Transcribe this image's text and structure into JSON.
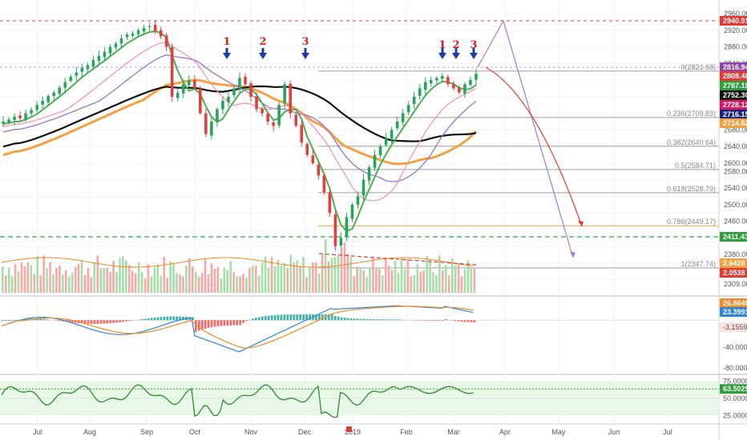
{
  "colors": {
    "up": "#26a65b",
    "down": "#e04040",
    "ema_fast": "#4caf50",
    "ma_pink": "#f48fb1",
    "ma_purple": "#9575cd",
    "ma_black": "#111111",
    "ma_orange": "#f5a142",
    "vol_up": "#a5dfa7",
    "vol_down": "#f7a8a8",
    "macd_line": "#2f86d6",
    "signal_line": "#f08a24",
    "rsi_line": "#2e8b2e",
    "fib_line": "#9e9e9e",
    "fib786": "#f5a142",
    "green_dash": "#2eaa2e",
    "red_dash": "#e53935",
    "projection_purple": "#a07ae0",
    "projection_red": "#e53935",
    "arrow_blue": "#1a3aa8"
  },
  "x_axis": {
    "months": [
      "Jul",
      "Aug",
      "Sep",
      "Oct",
      "Nov",
      "Dec",
      "2019",
      "Feb",
      "Mar",
      "Apr",
      "May",
      "Jun",
      "Jul"
    ]
  },
  "price_axis": {
    "ticks": [
      "2960.00",
      "2920.00",
      "2880.00",
      "2840.00",
      "2800.00",
      "2760.00",
      "2720.00",
      "2680.00",
      "2640.00",
      "2600.00",
      "2580.00",
      "2540.00",
      "2500.00",
      "2460.00",
      "2420.00",
      "2380.00",
      "2309.00"
    ],
    "tags": [
      {
        "text": "2940.91",
        "color": "#e53935"
      },
      {
        "text": "2816.94",
        "color": "#8e44ad"
      },
      {
        "text": "2808.48",
        "color": "#e53935"
      },
      {
        "text": "2787.19",
        "color": "#2e9d3a"
      },
      {
        "text": "2752.30",
        "color": "#111111"
      },
      {
        "text": "2728.12",
        "color": "#d81b60"
      },
      {
        "text": "2716.15",
        "color": "#1a237e"
      },
      {
        "text": "2714.82",
        "color": "#f5a142"
      },
      {
        "text": "2411.43",
        "color": "#2e9d3a"
      },
      {
        "text": "2.6428",
        "color": "#f5a142"
      },
      {
        "text": "2.0538",
        "color": "#e53935"
      }
    ]
  },
  "fib_levels": [
    {
      "label": "0(2821.68)",
      "price": 2821.68
    },
    {
      "label": "0.236(2709.83)",
      "price": 2709.83
    },
    {
      "label": "0.382(2640.64)",
      "price": 2640.64
    },
    {
      "label": "0.5(2584.71)",
      "price": 2584.71
    },
    {
      "label": "0.618(2528.79)",
      "price": 2528.79
    },
    {
      "label": "0.786(2449.17)",
      "price": 2449.17
    },
    {
      "label": "1(2347.74)",
      "price": 2347.74
    }
  ],
  "wave_labels": [
    "1",
    "2",
    "3",
    "1",
    "2",
    "3"
  ],
  "macd_axis": {
    "ticks": [
      "26.8649",
      "23.3991",
      "-3.1559",
      "-40.0000",
      "-80.0000"
    ]
  },
  "rsi_axis": {
    "ticks": [
      "75.0000",
      "63.5025",
      "50.0000",
      "25.0000"
    ]
  },
  "chart_data": {
    "type": "line",
    "title": "",
    "price_range": [
      2290,
      2980
    ],
    "series": [
      {
        "values": [
          2700,
          2705,
          2712,
          2708,
          2720,
          2728,
          2740,
          2750,
          2762,
          2770,
          2782,
          2795,
          2808,
          2818,
          2830,
          2836,
          2848,
          2858,
          2868,
          2880,
          2888,
          2900,
          2910,
          2912,
          2920,
          2925,
          2930,
          2918,
          2905,
          2880,
          2760,
          2770,
          2790,
          2800,
          2780,
          2720,
          2670,
          2700,
          2730,
          2750,
          2760,
          2780,
          2805,
          2790,
          2760,
          2730,
          2720,
          2700,
          2690,
          2740,
          2790,
          2720,
          2690,
          2650,
          2620,
          2600,
          2570,
          2530,
          2480,
          2400,
          2420,
          2470,
          2500,
          2520,
          2560,
          2590,
          2620,
          2640,
          2660,
          2680,
          2700,
          2720,
          2740,
          2760,
          2780,
          2795,
          2800,
          2805,
          2810,
          2790,
          2780,
          2770,
          2790,
          2800,
          2815
        ]
      },
      {
        "name": "",
        "values": []
      }
    ],
    "volume_range": [
      0,
      100
    ],
    "macd_range": [
      -90,
      35
    ],
    "rsi_range": [
      15,
      80
    ],
    "rsi_levels": [
      63.5025
    ]
  }
}
